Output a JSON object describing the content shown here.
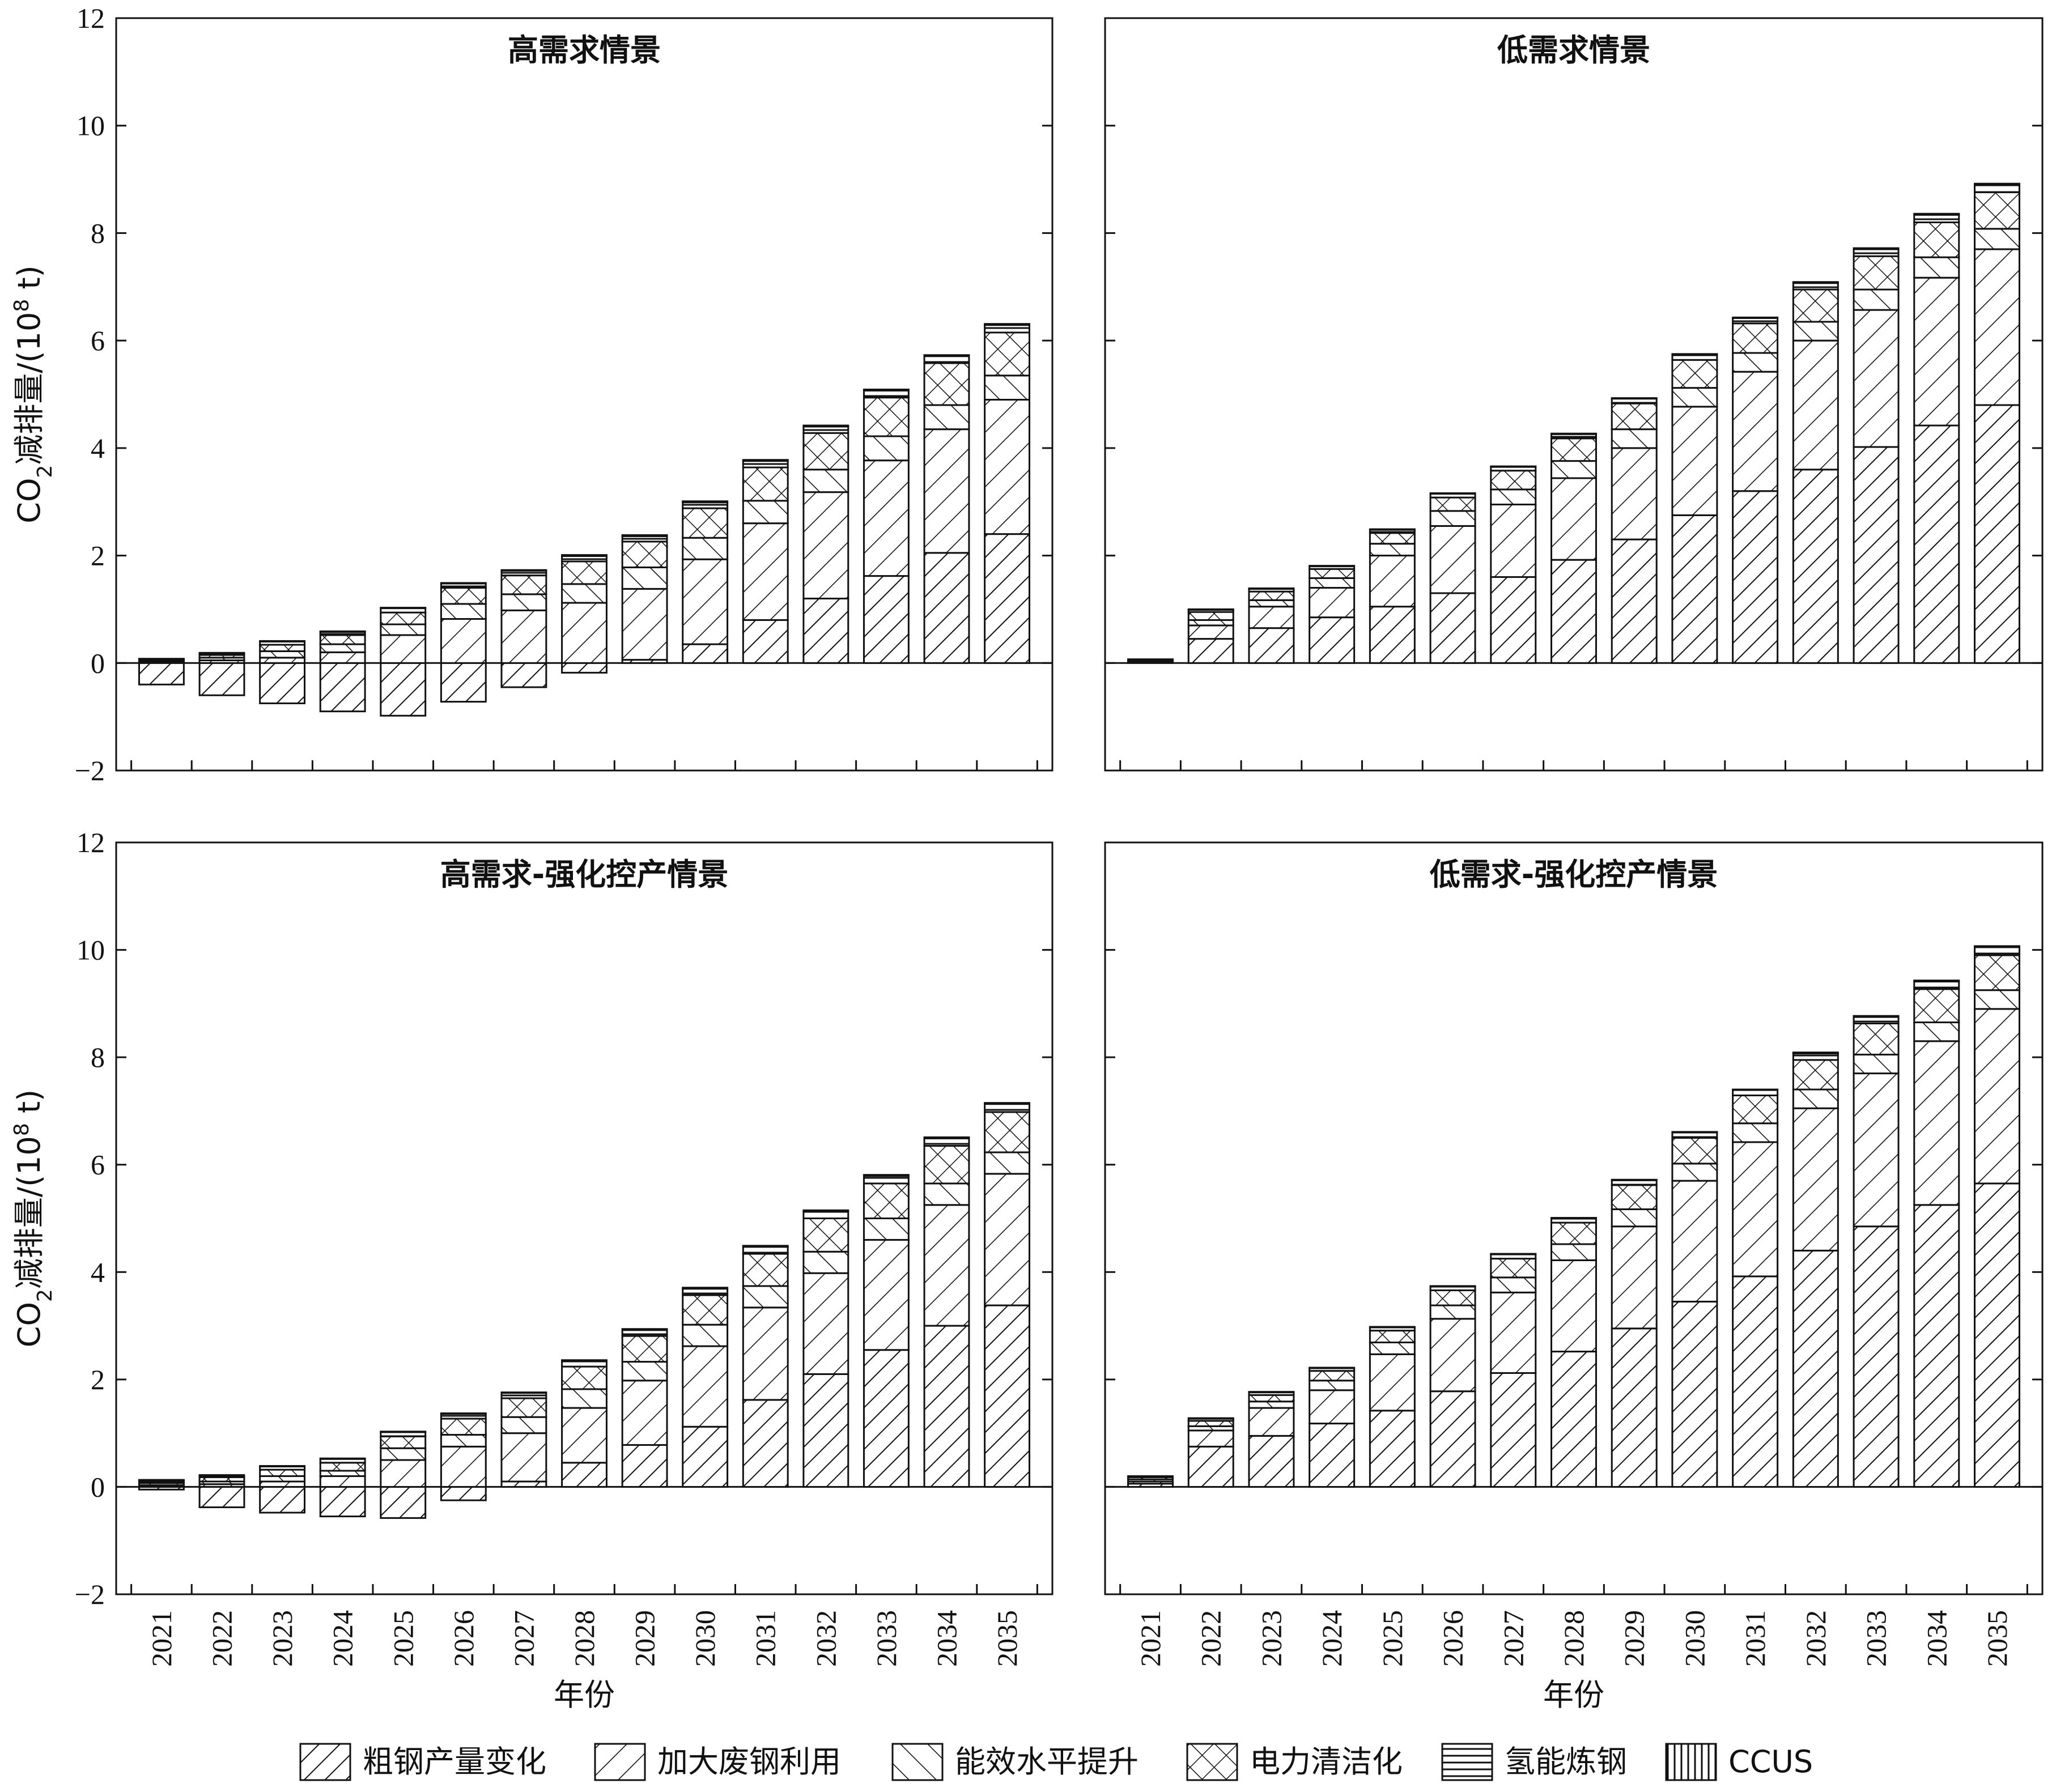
{
  "legend": [
    {
      "key": "crude",
      "label": "粗钢产量变化",
      "pattern": "crude"
    },
    {
      "key": "scrap",
      "label": "加大废钢利用",
      "pattern": "scrap"
    },
    {
      "key": "eff",
      "label": "能效水平提升",
      "pattern": "eff"
    },
    {
      "key": "elec",
      "label": "电力清洁化",
      "pattern": "elec"
    },
    {
      "key": "h2",
      "label": "氢能炼钢",
      "pattern": "h2"
    },
    {
      "key": "ccus",
      "label": "CCUS",
      "pattern": "ccus"
    }
  ],
  "ylabel": {
    "prefix": "CO",
    "sub": "2",
    "mid": "减排量/(10",
    "sup": "8",
    "suffix": " t)"
  },
  "xlabel": "年份",
  "chart_data": [
    {
      "type": "bar",
      "stacked": true,
      "title": "高需求情景",
      "categories": [
        "2021",
        "2022",
        "2023",
        "2024",
        "2025",
        "2026",
        "2027",
        "2028",
        "2029",
        "2030",
        "2031",
        "2032",
        "2033",
        "2034",
        "2035"
      ],
      "ylim": [
        -2,
        12
      ],
      "yticks": [
        -2,
        0,
        2,
        4,
        6,
        8,
        10,
        12
      ],
      "series": [
        {
          "name": "粗钢产量变化",
          "values": [
            -0.4,
            -0.6,
            -0.75,
            -0.9,
            -0.98,
            -0.72,
            -0.45,
            -0.18,
            0.06,
            0.35,
            0.8,
            1.2,
            1.62,
            2.05,
            2.4
          ]
        },
        {
          "name": "加大废钢利用",
          "values": [
            0.02,
            0.05,
            0.1,
            0.2,
            0.52,
            0.82,
            0.98,
            1.12,
            1.32,
            1.58,
            1.8,
            1.98,
            2.15,
            2.3,
            2.5
          ]
        },
        {
          "name": "能效水平提升",
          "values": [
            0.02,
            0.05,
            0.12,
            0.15,
            0.2,
            0.28,
            0.3,
            0.35,
            0.4,
            0.4,
            0.42,
            0.42,
            0.45,
            0.45,
            0.45
          ]
        },
        {
          "name": "电力清洁化",
          "values": [
            0.02,
            0.05,
            0.12,
            0.17,
            0.22,
            0.3,
            0.35,
            0.42,
            0.48,
            0.55,
            0.62,
            0.68,
            0.72,
            0.78,
            0.8
          ]
        },
        {
          "name": "氢能炼钢",
          "values": [
            0.01,
            0.03,
            0.06,
            0.06,
            0.08,
            0.08,
            0.09,
            0.1,
            0.1,
            0.11,
            0.12,
            0.12,
            0.13,
            0.13,
            0.14
          ]
        },
        {
          "name": "CCUS",
          "values": [
            0.01,
            0.01,
            0.01,
            0.01,
            0.01,
            0.01,
            0.01,
            0.02,
            0.02,
            0.02,
            0.02,
            0.02,
            0.02,
            0.02,
            0.02
          ]
        }
      ]
    },
    {
      "type": "bar",
      "stacked": true,
      "title": "低需求情景",
      "categories": [
        "2021",
        "2022",
        "2023",
        "2024",
        "2025",
        "2026",
        "2027",
        "2028",
        "2029",
        "2030",
        "2031",
        "2032",
        "2033",
        "2034",
        "2035"
      ],
      "ylim": [
        -2,
        12
      ],
      "yticks": [
        -2,
        0,
        2,
        4,
        6,
        8,
        10,
        12
      ],
      "series": [
        {
          "name": "粗钢产量变化",
          "values": [
            0.03,
            0.45,
            0.65,
            0.85,
            1.05,
            1.3,
            1.6,
            1.92,
            2.3,
            2.75,
            3.2,
            3.6,
            4.02,
            4.42,
            4.8
          ]
        },
        {
          "name": "加大废钢利用",
          "values": [
            0.01,
            0.25,
            0.4,
            0.55,
            0.95,
            1.25,
            1.35,
            1.52,
            1.7,
            2.02,
            2.22,
            2.4,
            2.55,
            2.75,
            2.9
          ]
        },
        {
          "name": "能效水平提升",
          "values": [
            0.01,
            0.1,
            0.12,
            0.18,
            0.22,
            0.28,
            0.28,
            0.32,
            0.35,
            0.35,
            0.35,
            0.35,
            0.38,
            0.38,
            0.38
          ]
        },
        {
          "name": "电力清洁化",
          "values": [
            0.01,
            0.15,
            0.16,
            0.17,
            0.2,
            0.25,
            0.35,
            0.42,
            0.48,
            0.52,
            0.55,
            0.6,
            0.62,
            0.65,
            0.68
          ]
        },
        {
          "name": "氢能炼钢",
          "values": [
            0.01,
            0.04,
            0.05,
            0.05,
            0.06,
            0.07,
            0.07,
            0.08,
            0.09,
            0.1,
            0.1,
            0.12,
            0.13,
            0.14,
            0.14
          ]
        },
        {
          "name": "CCUS",
          "values": [
            0.0,
            0.01,
            0.01,
            0.01,
            0.01,
            0.01,
            0.01,
            0.01,
            0.01,
            0.01,
            0.01,
            0.02,
            0.02,
            0.02,
            0.02
          ]
        }
      ]
    },
    {
      "type": "bar",
      "stacked": true,
      "title": "高需求-强化控产情景",
      "categories": [
        "2021",
        "2022",
        "2023",
        "2024",
        "2025",
        "2026",
        "2027",
        "2028",
        "2029",
        "2030",
        "2031",
        "2032",
        "2033",
        "2034",
        "2035"
      ],
      "ylim": [
        -2,
        12
      ],
      "yticks": [
        -2,
        0,
        2,
        4,
        6,
        8,
        10,
        12
      ],
      "series": [
        {
          "name": "粗钢产量变化",
          "values": [
            -0.05,
            -0.38,
            -0.48,
            -0.55,
            -0.58,
            -0.25,
            0.1,
            0.45,
            0.78,
            1.12,
            1.62,
            2.1,
            2.55,
            3.0,
            3.38
          ]
        },
        {
          "name": "加大废钢利用",
          "values": [
            0.03,
            0.05,
            0.1,
            0.2,
            0.5,
            0.75,
            0.9,
            1.02,
            1.2,
            1.5,
            1.72,
            1.88,
            2.05,
            2.25,
            2.45
          ]
        },
        {
          "name": "能效水平提升",
          "values": [
            0.04,
            0.05,
            0.1,
            0.1,
            0.22,
            0.22,
            0.3,
            0.35,
            0.35,
            0.4,
            0.4,
            0.4,
            0.4,
            0.4,
            0.4
          ]
        },
        {
          "name": "电力清洁化",
          "values": [
            0.03,
            0.08,
            0.12,
            0.15,
            0.22,
            0.3,
            0.35,
            0.42,
            0.48,
            0.55,
            0.6,
            0.62,
            0.65,
            0.7,
            0.75
          ]
        },
        {
          "name": "氢能炼钢",
          "values": [
            0.02,
            0.03,
            0.06,
            0.07,
            0.08,
            0.09,
            0.1,
            0.1,
            0.11,
            0.12,
            0.13,
            0.13,
            0.14,
            0.14,
            0.15
          ]
        },
        {
          "name": "CCUS",
          "values": [
            0.01,
            0.01,
            0.01,
            0.01,
            0.01,
            0.01,
            0.01,
            0.02,
            0.02,
            0.02,
            0.02,
            0.02,
            0.02,
            0.02,
            0.02
          ]
        }
      ]
    },
    {
      "type": "bar",
      "stacked": true,
      "title": "低需求-强化控产情景",
      "categories": [
        "2021",
        "2022",
        "2023",
        "2024",
        "2025",
        "2026",
        "2027",
        "2028",
        "2029",
        "2030",
        "2031",
        "2032",
        "2033",
        "2034",
        "2035"
      ],
      "ylim": [
        -2,
        12
      ],
      "yticks": [
        -2,
        0,
        2,
        4,
        6,
        8,
        10,
        12
      ],
      "series": [
        {
          "name": "粗钢产量变化",
          "values": [
            0.06,
            0.75,
            0.95,
            1.18,
            1.42,
            1.78,
            2.12,
            2.52,
            2.95,
            3.45,
            3.92,
            4.4,
            4.85,
            5.25,
            5.65
          ]
        },
        {
          "name": "加大废钢利用",
          "values": [
            0.04,
            0.3,
            0.52,
            0.62,
            1.05,
            1.35,
            1.5,
            1.7,
            1.9,
            2.25,
            2.5,
            2.65,
            2.85,
            3.05,
            3.25
          ]
        },
        {
          "name": "能效水平提升",
          "values": [
            0.04,
            0.08,
            0.12,
            0.18,
            0.22,
            0.25,
            0.28,
            0.3,
            0.32,
            0.32,
            0.35,
            0.35,
            0.35,
            0.35,
            0.35
          ]
        },
        {
          "name": "电力清洁化",
          "values": [
            0.04,
            0.1,
            0.12,
            0.18,
            0.22,
            0.28,
            0.35,
            0.4,
            0.45,
            0.48,
            0.52,
            0.55,
            0.58,
            0.62,
            0.65
          ]
        },
        {
          "name": "氢能炼钢",
          "values": [
            0.02,
            0.04,
            0.05,
            0.05,
            0.06,
            0.07,
            0.08,
            0.08,
            0.09,
            0.1,
            0.1,
            0.12,
            0.12,
            0.14,
            0.15
          ]
        },
        {
          "name": "CCUS",
          "values": [
            0.0,
            0.01,
            0.01,
            0.01,
            0.01,
            0.01,
            0.01,
            0.01,
            0.01,
            0.01,
            0.01,
            0.02,
            0.02,
            0.02,
            0.02
          ]
        }
      ]
    }
  ]
}
